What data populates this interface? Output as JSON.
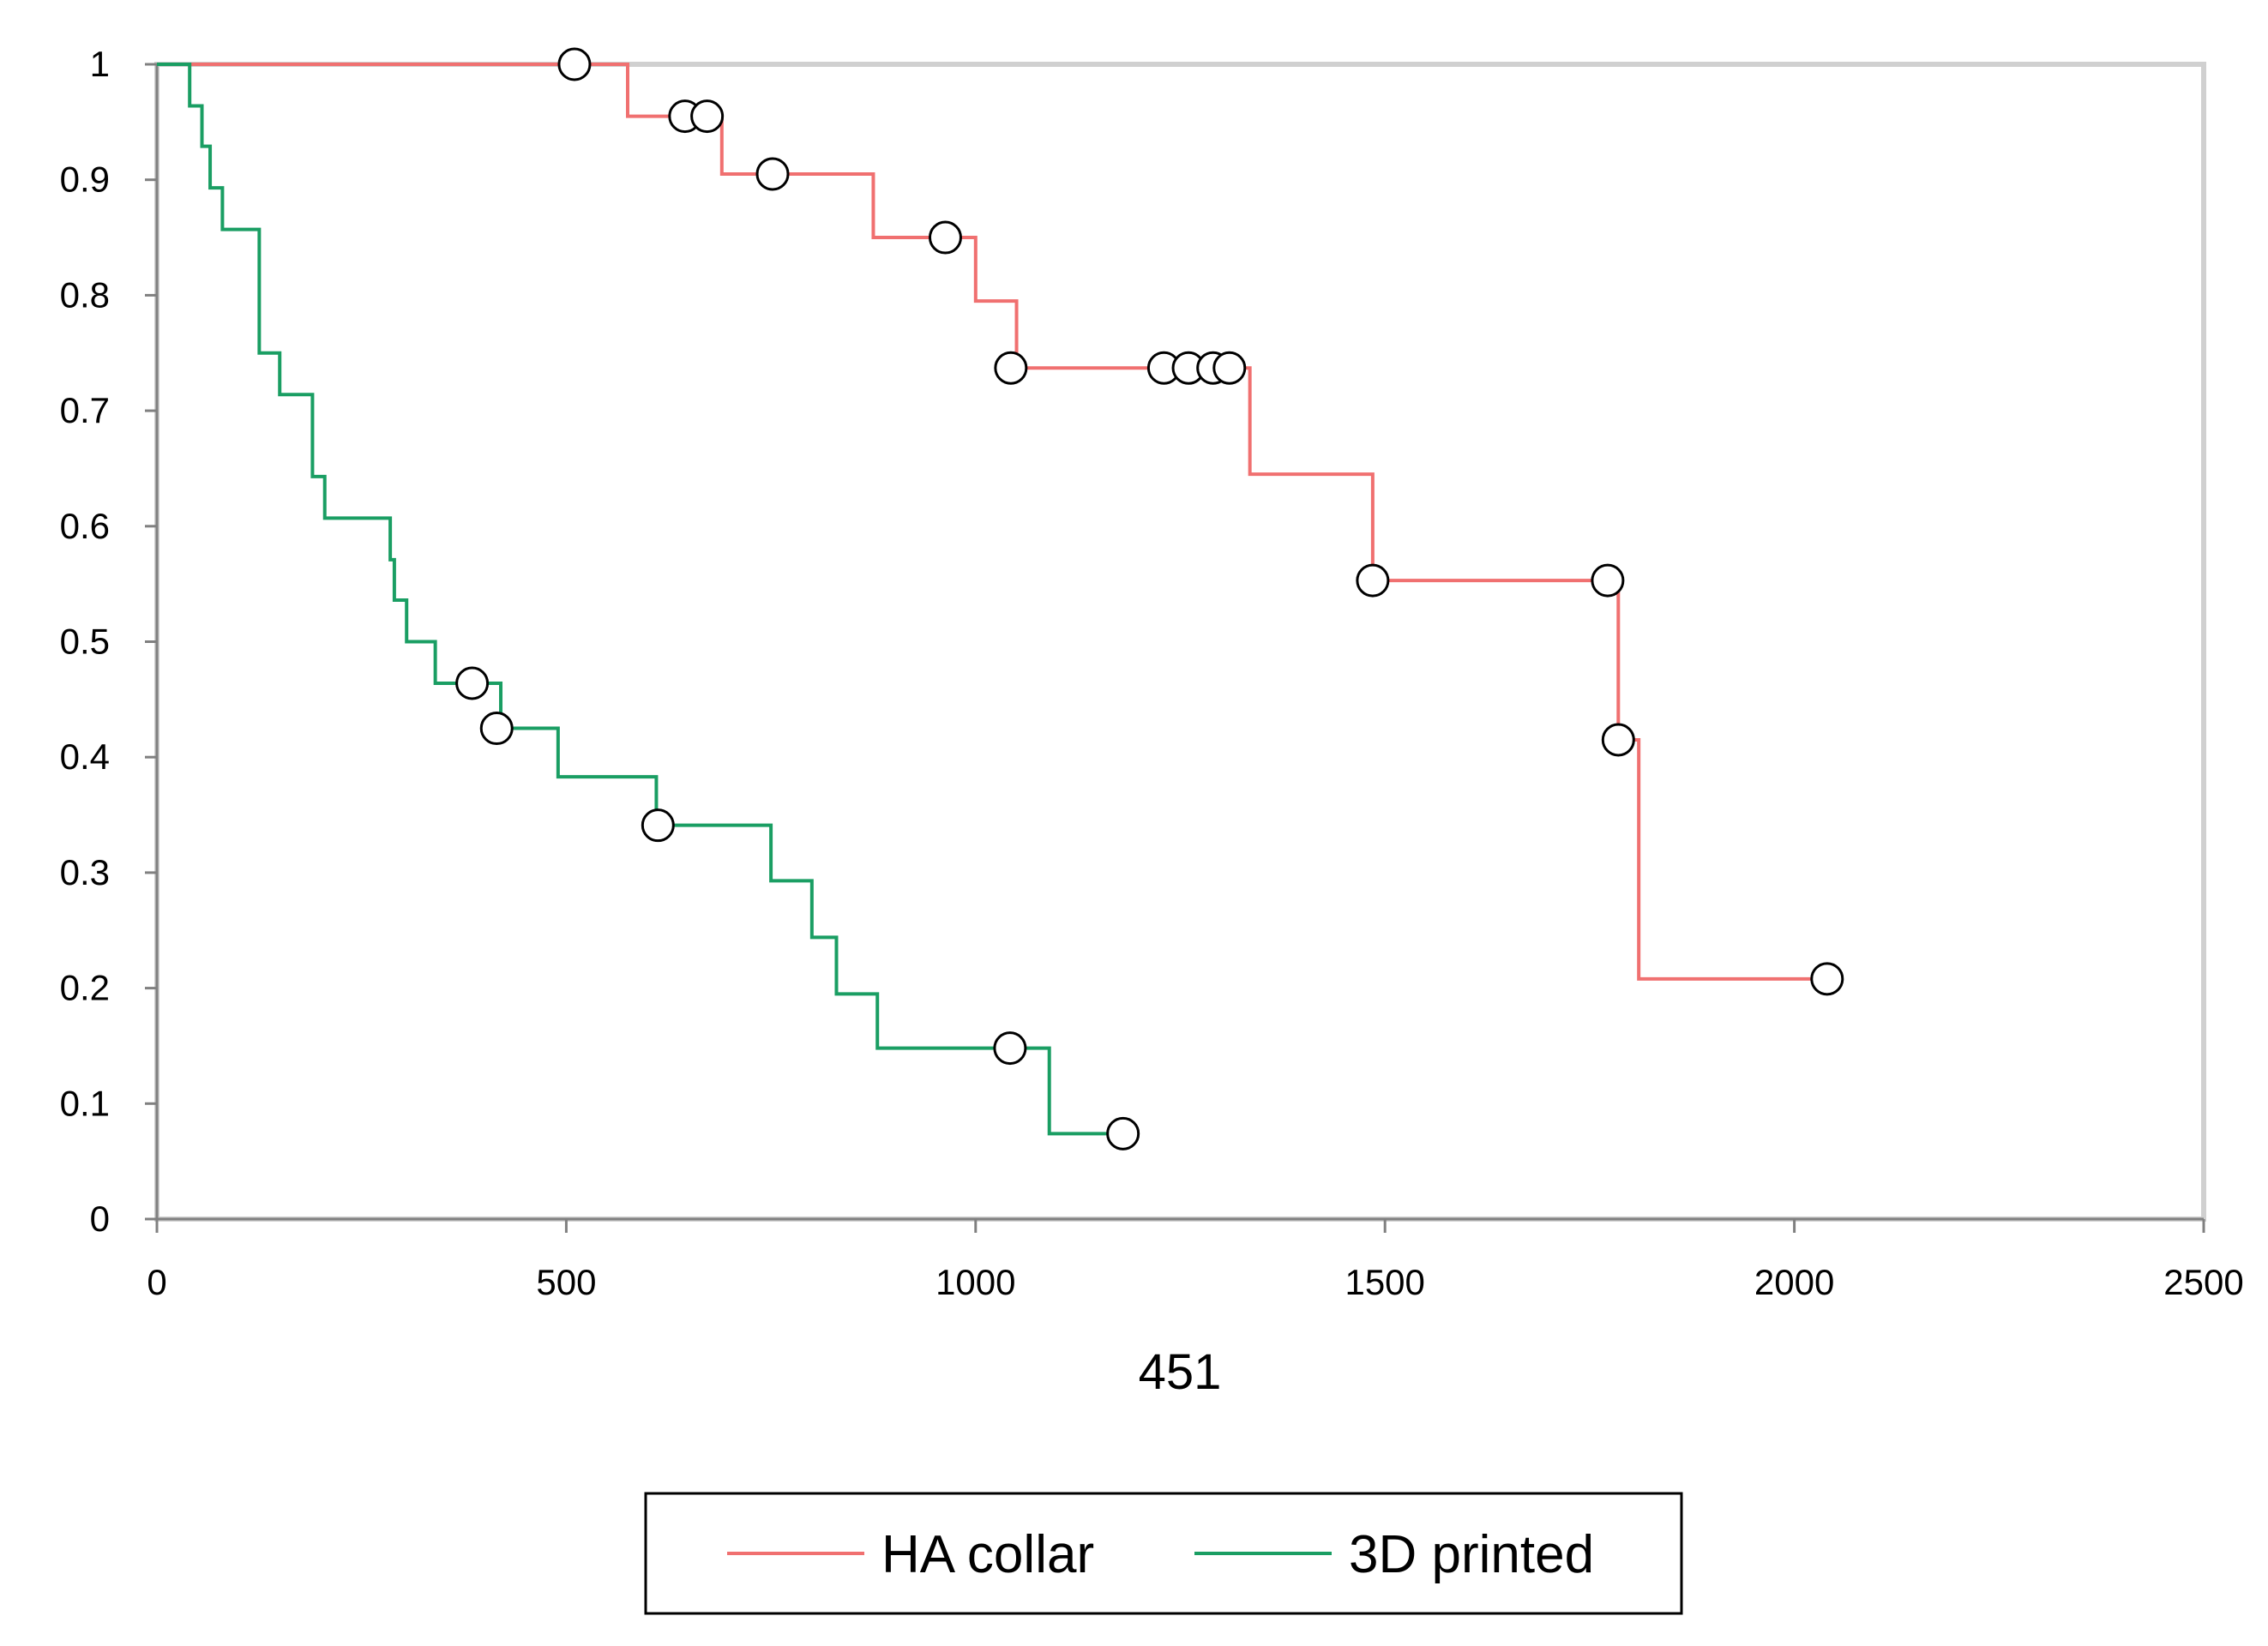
{
  "chart_data": {
    "type": "line",
    "title": "",
    "xlabel": "451",
    "ylabel": "",
    "xlim": [
      0,
      2500
    ],
    "ylim": [
      0,
      1
    ],
    "x_ticks": [
      0,
      500,
      1000,
      1500,
      2000,
      2500
    ],
    "x_tick_labels": [
      "0",
      "500",
      "1000",
      "1500",
      "2000",
      "2500"
    ],
    "y_ticks": [
      0,
      0.1,
      0.2,
      0.3,
      0.4,
      0.5,
      0.6,
      0.7,
      0.8,
      0.9,
      1
    ],
    "y_tick_labels": [
      "0",
      "0.1",
      "0.2",
      "0.3",
      "0.4",
      "0.5",
      "0.6",
      "0.7",
      "0.8",
      "0.9",
      "1"
    ],
    "grid": false,
    "legend_position": "bottom",
    "step": true,
    "series": [
      {
        "name": "HA collar",
        "color": "#f07070",
        "steps": [
          [
            0,
            1.0
          ],
          [
            575,
            0.955
          ],
          [
            690,
            0.905
          ],
          [
            875,
            0.85
          ],
          [
            1000,
            0.795
          ],
          [
            1050,
            0.737
          ],
          [
            1335,
            0.645
          ],
          [
            1485,
            0.553
          ],
          [
            1785,
            0.415
          ],
          [
            1810,
            0.208
          ],
          [
            2040,
            0.208
          ]
        ],
        "censored": [
          [
            510,
            1.0
          ],
          [
            645,
            0.955
          ],
          [
            672,
            0.955
          ],
          [
            752,
            0.905
          ],
          [
            963,
            0.85
          ],
          [
            1043,
            0.737
          ],
          [
            1230,
            0.737
          ],
          [
            1260,
            0.737
          ],
          [
            1290,
            0.737
          ],
          [
            1310,
            0.737
          ],
          [
            1485,
            0.553
          ],
          [
            1772,
            0.553
          ],
          [
            1785,
            0.415
          ],
          [
            2040,
            0.208
          ]
        ]
      },
      {
        "name": "3D printed",
        "color": "#1a9e63",
        "steps": [
          [
            0,
            1.0
          ],
          [
            40,
            0.964
          ],
          [
            55,
            0.929
          ],
          [
            65,
            0.893
          ],
          [
            80,
            0.857
          ],
          [
            125,
            0.75
          ],
          [
            150,
            0.714
          ],
          [
            190,
            0.643
          ],
          [
            205,
            0.607
          ],
          [
            285,
            0.571
          ],
          [
            290,
            0.536
          ],
          [
            305,
            0.5
          ],
          [
            340,
            0.464
          ],
          [
            420,
            0.425
          ],
          [
            490,
            0.383
          ],
          [
            610,
            0.341
          ],
          [
            750,
            0.293
          ],
          [
            800,
            0.244
          ],
          [
            830,
            0.195
          ],
          [
            880,
            0.148
          ],
          [
            1090,
            0.074
          ],
          [
            1180,
            0.074
          ]
        ],
        "censored": [
          [
            385,
            0.464
          ],
          [
            415,
            0.425
          ],
          [
            612,
            0.341
          ],
          [
            1042,
            0.148
          ],
          [
            1180,
            0.074
          ]
        ]
      }
    ]
  }
}
